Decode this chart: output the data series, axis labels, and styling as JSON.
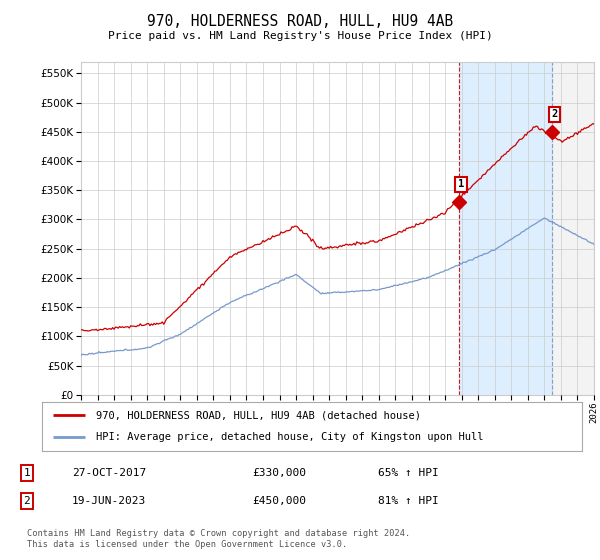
{
  "title": "970, HOLDERNESS ROAD, HULL, HU9 4AB",
  "subtitle": "Price paid vs. HM Land Registry's House Price Index (HPI)",
  "ylim": [
    0,
    570000
  ],
  "yticks": [
    0,
    50000,
    100000,
    150000,
    200000,
    250000,
    300000,
    350000,
    400000,
    450000,
    500000,
    550000
  ],
  "ytick_labels": [
    "£0",
    "£50K",
    "£100K",
    "£150K",
    "£200K",
    "£250K",
    "£300K",
    "£350K",
    "£400K",
    "£450K",
    "£500K",
    "£550K"
  ],
  "sale1_year": 2017.82,
  "sale1_price": 330000,
  "sale2_year": 2023.47,
  "sale2_price": 450000,
  "vline_color": "#cc0000",
  "vline2_color": "#8888bb",
  "highlight_color": "#ddeeff",
  "red_line_color": "#cc0000",
  "blue_line_color": "#7799cc",
  "grid_color": "#cccccc",
  "bg_color": "#ffffff",
  "legend_label_red": "970, HOLDERNESS ROAD, HULL, HU9 4AB (detached house)",
  "legend_label_blue": "HPI: Average price, detached house, City of Kingston upon Hull",
  "footer": "Contains HM Land Registry data © Crown copyright and database right 2024.\nThis data is licensed under the Open Government Licence v3.0.",
  "table_row1": [
    "1",
    "27-OCT-2017",
    "£330,000",
    "65% ↑ HPI"
  ],
  "table_row2": [
    "2",
    "19-JUN-2023",
    "£450,000",
    "81% ↑ HPI"
  ]
}
